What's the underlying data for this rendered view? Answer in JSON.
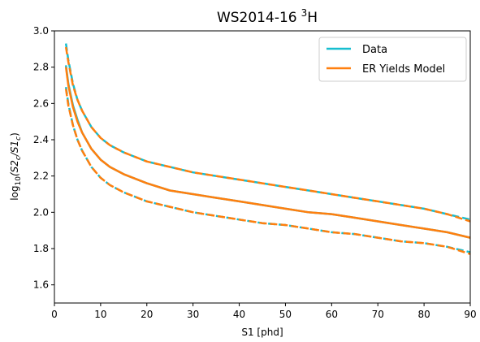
{
  "chart_data": {
    "type": "line",
    "title": "WS2014-16",
    "title_superscript": "3",
    "title_suffix": "H",
    "xlabel": "S1 [phd]",
    "ylabel": {
      "prefix": "log",
      "sub": "10",
      "open": "(S2",
      "sub2": "c",
      "mid": "/S1",
      "sub3": "c",
      "close": ")"
    },
    "xlim": [
      0,
      90
    ],
    "ylim": [
      1.5,
      3.0
    ],
    "xticks": [
      0,
      10,
      20,
      30,
      40,
      50,
      60,
      70,
      80,
      90
    ],
    "yticks": [
      1.6,
      1.8,
      2.0,
      2.2,
      2.4,
      2.6,
      2.8,
      3.0
    ],
    "grid": false,
    "legend_position": "upper-right",
    "legend": [
      {
        "label": "Data",
        "color": "#17becf"
      },
      {
        "label": "ER Yields Model",
        "color": "#ff7f0e"
      }
    ],
    "series": [
      {
        "name": "Data",
        "color": "#17becf",
        "curves": [
          {
            "role": "median",
            "style": "solid",
            "x": [
              2.5,
              3,
              4,
              5,
              6,
              8,
              10,
              12,
              15,
              20,
              25,
              30,
              35,
              40,
              45,
              50,
              55,
              60,
              65,
              70,
              75,
              80,
              85,
              90
            ],
            "y": [
              2.81,
              2.71,
              2.59,
              2.51,
              2.44,
              2.35,
              2.29,
              2.25,
              2.21,
              2.16,
              2.12,
              2.1,
              2.08,
              2.06,
              2.04,
              2.02,
              2.0,
              1.99,
              1.97,
              1.95,
              1.93,
              1.91,
              1.89,
              1.86
            ]
          },
          {
            "role": "upper",
            "style": "dashed",
            "x": [
              2.5,
              3,
              4,
              5,
              6,
              8,
              10,
              12,
              15,
              20,
              25,
              30,
              35,
              40,
              45,
              50,
              55,
              60,
              65,
              70,
              75,
              80,
              85,
              90
            ],
            "y": [
              2.93,
              2.84,
              2.71,
              2.62,
              2.56,
              2.47,
              2.41,
              2.37,
              2.33,
              2.28,
              2.25,
              2.22,
              2.2,
              2.18,
              2.16,
              2.14,
              2.12,
              2.1,
              2.08,
              2.06,
              2.04,
              2.02,
              1.99,
              1.96
            ]
          },
          {
            "role": "lower",
            "style": "dashed",
            "x": [
              2.5,
              3,
              4,
              5,
              6,
              8,
              10,
              12,
              15,
              20,
              25,
              30,
              35,
              40,
              45,
              50,
              55,
              60,
              65,
              70,
              75,
              80,
              85,
              90
            ],
            "y": [
              2.69,
              2.6,
              2.48,
              2.4,
              2.34,
              2.25,
              2.19,
              2.15,
              2.11,
              2.06,
              2.03,
              2.0,
              1.98,
              1.96,
              1.94,
              1.93,
              1.91,
              1.89,
              1.88,
              1.86,
              1.84,
              1.83,
              1.81,
              1.78
            ]
          }
        ]
      },
      {
        "name": "ER Yields Model",
        "color": "#ff7f0e",
        "curves": [
          {
            "role": "median",
            "style": "solid",
            "x": [
              2.5,
              3,
              4,
              5,
              6,
              8,
              10,
              12,
              15,
              20,
              25,
              30,
              35,
              40,
              45,
              50,
              55,
              60,
              65,
              70,
              75,
              80,
              85,
              90
            ],
            "y": [
              2.8,
              2.7,
              2.58,
              2.5,
              2.44,
              2.35,
              2.29,
              2.25,
              2.21,
              2.16,
              2.12,
              2.1,
              2.08,
              2.06,
              2.04,
              2.02,
              2.0,
              1.99,
              1.97,
              1.95,
              1.93,
              1.91,
              1.89,
              1.86
            ]
          },
          {
            "role": "upper",
            "style": "dashed",
            "x": [
              2.5,
              3,
              4,
              5,
              6,
              8,
              10,
              12,
              15,
              20,
              25,
              30,
              35,
              40,
              45,
              50,
              55,
              60,
              65,
              70,
              75,
              80,
              85,
              90
            ],
            "y": [
              2.91,
              2.83,
              2.7,
              2.62,
              2.56,
              2.47,
              2.41,
              2.37,
              2.33,
              2.28,
              2.25,
              2.22,
              2.2,
              2.18,
              2.16,
              2.14,
              2.12,
              2.1,
              2.08,
              2.06,
              2.04,
              2.02,
              1.99,
              1.95
            ]
          },
          {
            "role": "lower",
            "style": "dashed",
            "x": [
              2.5,
              3,
              4,
              5,
              6,
              8,
              10,
              12,
              15,
              20,
              25,
              30,
              35,
              40,
              45,
              50,
              55,
              60,
              65,
              70,
              75,
              80,
              85,
              90
            ],
            "y": [
              2.68,
              2.59,
              2.48,
              2.4,
              2.34,
              2.25,
              2.19,
              2.15,
              2.11,
              2.06,
              2.03,
              2.0,
              1.98,
              1.96,
              1.94,
              1.93,
              1.91,
              1.89,
              1.88,
              1.86,
              1.84,
              1.83,
              1.81,
              1.77
            ]
          }
        ]
      }
    ]
  }
}
